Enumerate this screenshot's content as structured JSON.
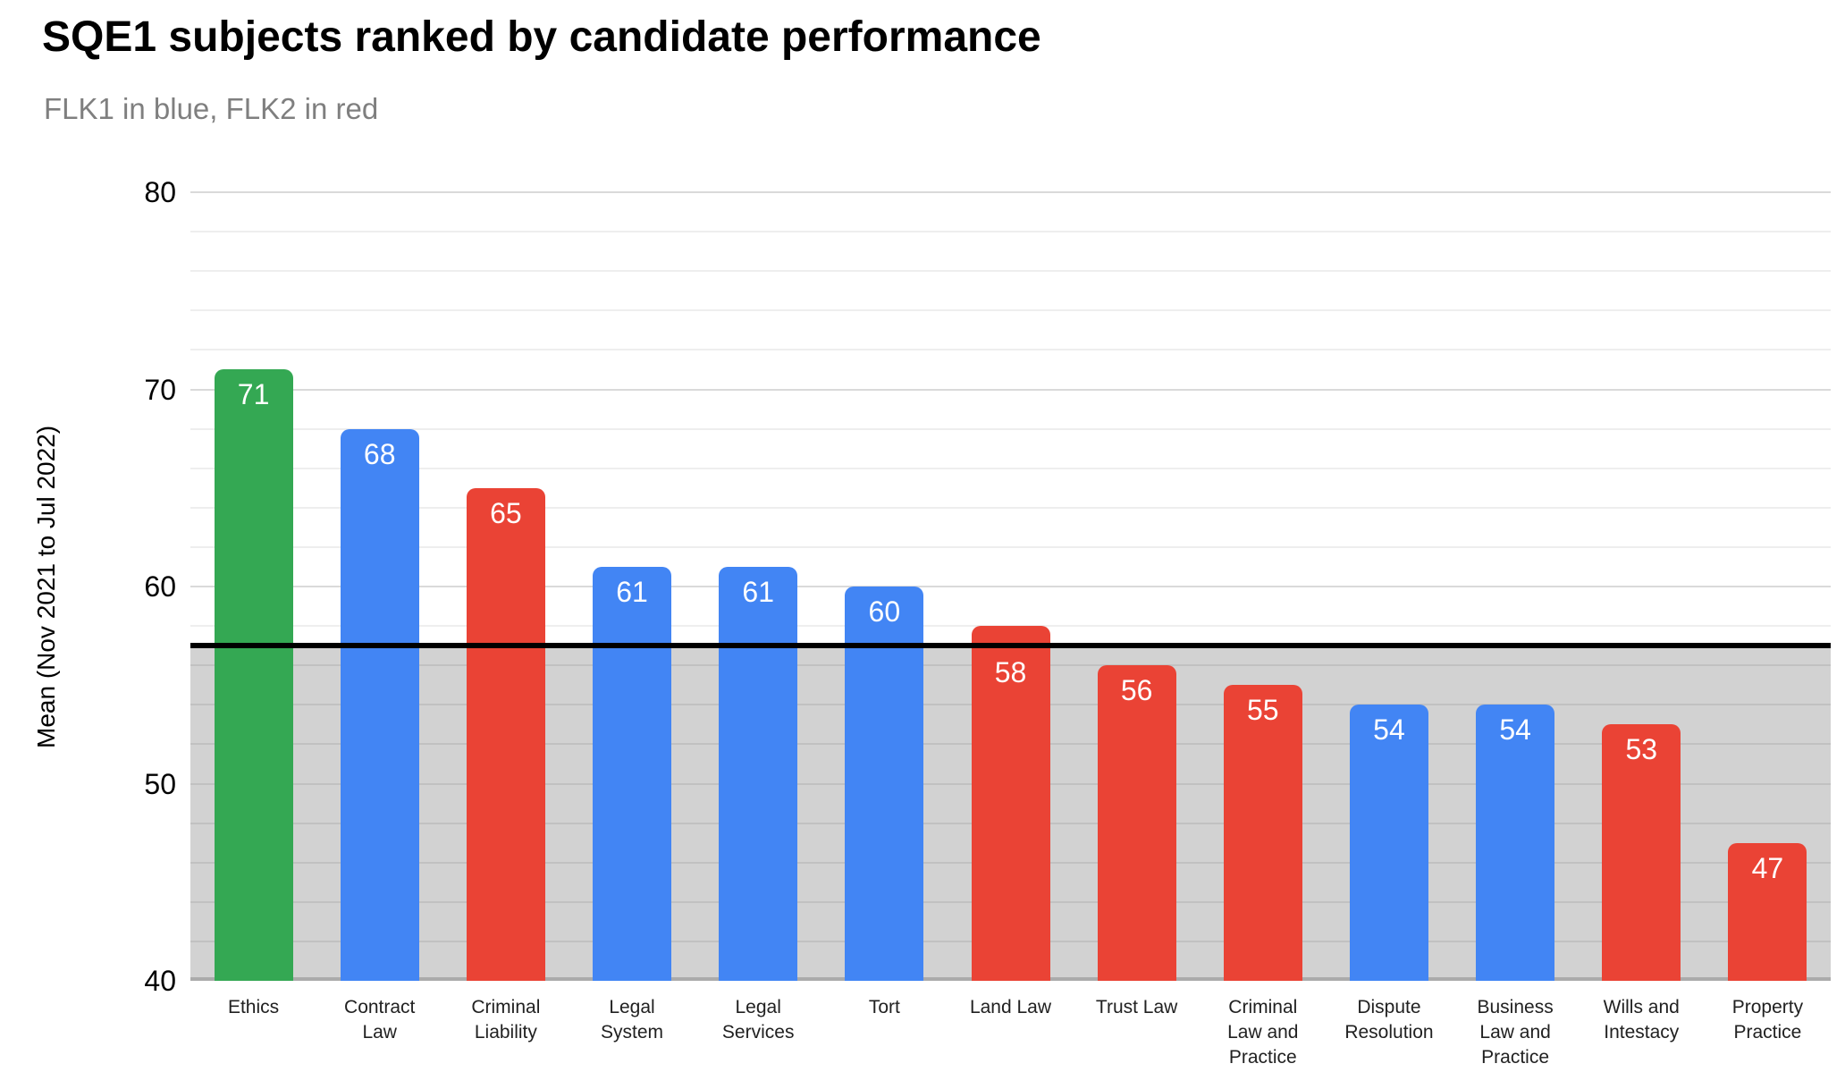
{
  "chart_data": {
    "type": "bar",
    "title": "SQE1 subjects ranked by candidate performance",
    "subtitle": "FLK1 in blue, FLK2 in red",
    "xlabel": "",
    "ylabel": "Mean (Nov 2021 to Jul 2022)",
    "ylim": [
      40,
      80
    ],
    "yticks": [
      40,
      50,
      60,
      70,
      80
    ],
    "minor_gridline_step": 2,
    "grid": true,
    "legend_position": "none",
    "categories": [
      "Ethics",
      "Contract Law",
      "Criminal Liability",
      "Legal System",
      "Legal Services",
      "Tort",
      "Land Law",
      "Trust Law",
      "Criminal Law and Practice",
      "Dispute Resolution",
      "Business Law and Practice",
      "Wills and Intestacy",
      "Property Practice"
    ],
    "values": [
      71,
      68,
      65,
      61,
      61,
      60,
      58,
      56,
      55,
      54,
      54,
      53,
      47
    ],
    "bar_colors": [
      "#34a853",
      "#4285f4",
      "#ea4335",
      "#4285f4",
      "#4285f4",
      "#4285f4",
      "#ea4335",
      "#ea4335",
      "#ea4335",
      "#4285f4",
      "#4285f4",
      "#ea4335",
      "#ea4335"
    ],
    "series": [
      {
        "name": "Ethics (green highlight)",
        "color": "#34a853",
        "indices": [
          0
        ]
      },
      {
        "name": "FLK1",
        "color": "#4285f4",
        "indices": [
          1,
          3,
          4,
          5,
          9,
          10
        ]
      },
      {
        "name": "FLK2",
        "color": "#ea4335",
        "indices": [
          2,
          6,
          7,
          8,
          11,
          12
        ]
      }
    ],
    "value_label_color": "#ffffff",
    "reference_line": {
      "value": 57,
      "color": "#000000"
    },
    "below_reference_fill": "#d2d2d2",
    "gridline_colors": {
      "minor_above": "#eeeeee",
      "major_above": "#dadada",
      "below_reference": "#c1c1c1",
      "baseline": "#ababab"
    },
    "subtitle_color": "#7f7f7f"
  }
}
